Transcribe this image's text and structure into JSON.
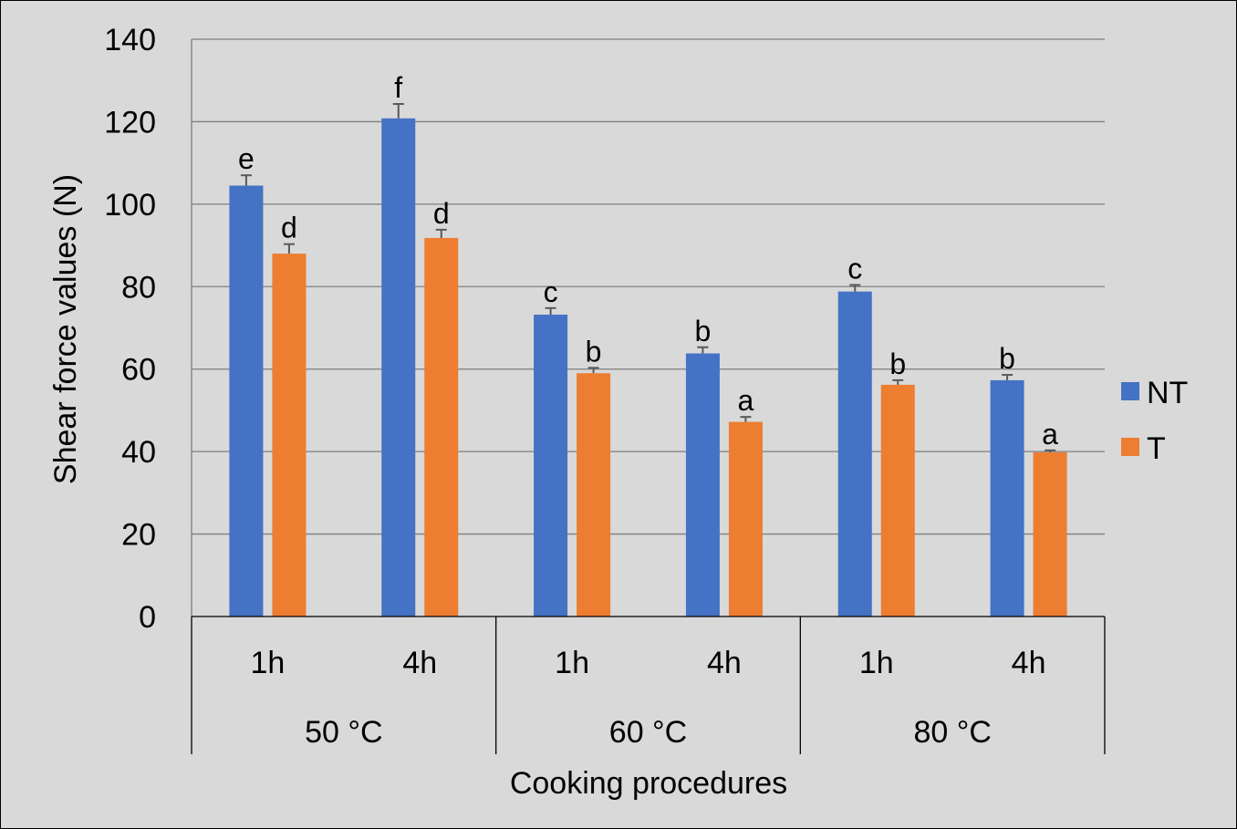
{
  "chart_data": {
    "type": "bar",
    "title": "",
    "xlabel": "Cooking procedures",
    "ylabel": "Shear force values (N)",
    "ylim": [
      0,
      140
    ],
    "yticks": [
      0,
      20,
      40,
      60,
      80,
      100,
      120,
      140
    ],
    "grid": true,
    "legend_position": "right",
    "categories": [
      "1h",
      "4h",
      "1h",
      "4h",
      "1h",
      "4h"
    ],
    "groups": [
      {
        "label": "50 °C",
        "start": 0,
        "count": 2
      },
      {
        "label": "60 °C",
        "start": 2,
        "count": 2
      },
      {
        "label": "80 °C",
        "start": 4,
        "count": 2
      }
    ],
    "series": [
      {
        "name": "NT",
        "color": "#4472c4",
        "values": [
          104.5,
          120.8,
          73.2,
          63.8,
          78.8,
          57.3
        ],
        "errors": [
          2.5,
          3.5,
          1.6,
          1.5,
          1.6,
          1.3
        ],
        "letters": [
          "e",
          "f",
          "c",
          "b",
          "c",
          "b"
        ]
      },
      {
        "name": "T",
        "color": "#ed7d31",
        "values": [
          88.0,
          91.8,
          59.0,
          47.2,
          56.2,
          39.8
        ],
        "errors": [
          2.3,
          2.0,
          1.3,
          1.2,
          1.1,
          0.5
        ],
        "letters": [
          "d",
          "d",
          "b",
          "a",
          "b",
          "a"
        ]
      }
    ]
  }
}
